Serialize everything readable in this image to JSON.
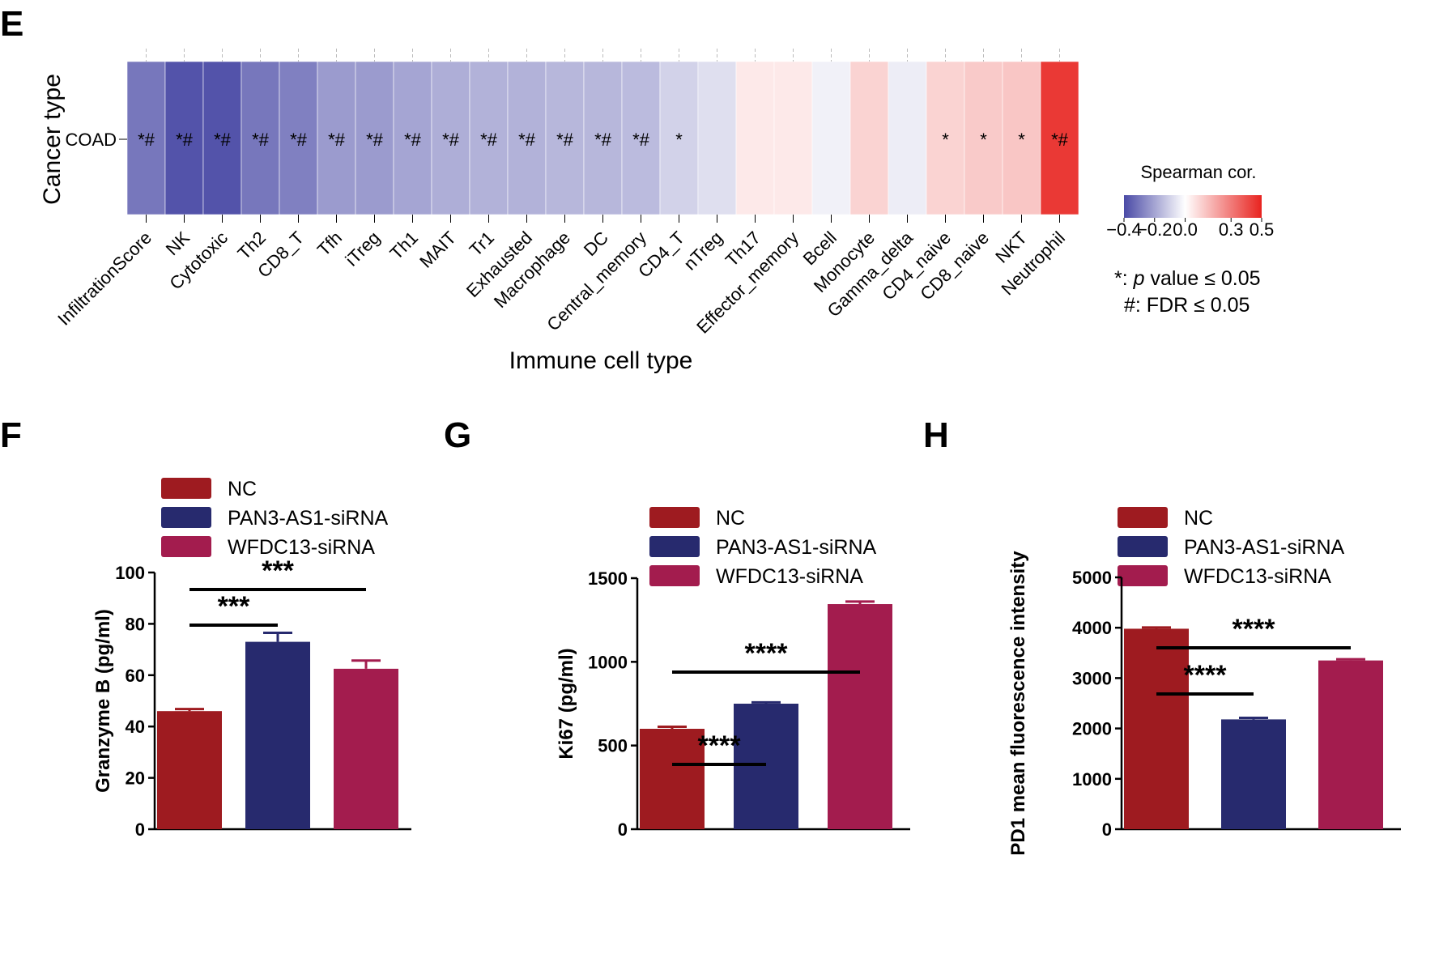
{
  "chart_data": [
    {
      "panel": "E",
      "type": "heatmap",
      "ylabel": "Cancer type",
      "xlabel": "Immune cell type",
      "rows": [
        "COAD"
      ],
      "columns": [
        "InfiltrationScore",
        "NK",
        "Cytotoxic",
        "Th2",
        "CD8_T",
        "Tfh",
        "iTreg",
        "Th1",
        "MAIT",
        "Tr1",
        "Exhausted",
        "Macrophage",
        "DC",
        "Central_memory",
        "CD4_T",
        "nTreg",
        "Th17",
        "Effector_memory",
        "Bcell",
        "Monocyte",
        "Gamma_delta",
        "CD4_naive",
        "CD8_naive",
        "NKT",
        "Neutrophil"
      ],
      "values": [
        -0.3,
        -0.38,
        -0.38,
        -0.3,
        -0.28,
        -0.22,
        -0.22,
        -0.2,
        -0.18,
        -0.17,
        -0.17,
        -0.16,
        -0.16,
        -0.15,
        -0.1,
        -0.07,
        0.05,
        0.05,
        -0.03,
        0.1,
        -0.04,
        0.1,
        0.12,
        0.13,
        0.45
      ],
      "marks": [
        "*#",
        "*#",
        "*#",
        "*#",
        "*#",
        "*#",
        "*#",
        "*#",
        "*#",
        "*#",
        "*#",
        "*#",
        "*#",
        "*#",
        "*",
        "",
        "",
        "",
        "",
        "",
        "",
        "*",
        "*",
        "*",
        "*#"
      ],
      "colorbar": {
        "title": "Spearman cor.",
        "min": -0.4,
        "max": 0.5,
        "ticks": [
          "−0.4",
          "−0.2",
          "0.0",
          "0.3",
          "0.5"
        ],
        "tick_values": [
          -0.4,
          -0.2,
          0.0,
          0.3,
          0.5
        ],
        "low_color": "#4a4aa6",
        "mid_color": "#ffffff",
        "high_color": "#e8231f"
      },
      "notes": {
        "p_prefix": "*: ",
        "p_italic": "p",
        "p_suffix": " value ≤ 0.05",
        "fdr": "#: FDR ≤ 0.05"
      }
    },
    {
      "panel": "F",
      "type": "bar",
      "categories": [
        "NC",
        "PAN3-AS1-siRNA",
        "WFDC13-siRNA"
      ],
      "values": [
        46,
        73,
        62.5
      ],
      "errors": [
        0.8,
        3.5,
        3.2
      ],
      "colors": [
        "#9e1b20",
        "#272a6e",
        "#a31c4e"
      ],
      "ylabel": "Granzyme B (pg/ml)",
      "ylim": [
        0,
        100
      ],
      "yticks": [
        "0",
        "20",
        "40",
        "60",
        "80",
        "100"
      ],
      "significance": [
        {
          "from": 0,
          "to": 1,
          "label": "***"
        },
        {
          "from": 0,
          "to": 2,
          "label": "***"
        }
      ]
    },
    {
      "panel": "G",
      "type": "bar",
      "categories": [
        "NC",
        "PAN3-AS1-siRNA",
        "WFDC13-siRNA"
      ],
      "values": [
        600,
        750,
        1345
      ],
      "errors": [
        12,
        8,
        15
      ],
      "colors": [
        "#9e1b20",
        "#272a6e",
        "#a31c4e"
      ],
      "ylabel": "Ki67 (pg/ml)",
      "ylim": [
        0,
        1500
      ],
      "yticks": [
        "0",
        "500",
        "1000",
        "1500"
      ],
      "significance": [
        {
          "from": 0,
          "to": 1,
          "label": "****"
        },
        {
          "from": 0,
          "to": 2,
          "label": "****"
        }
      ]
    },
    {
      "panel": "H",
      "type": "bar",
      "categories": [
        "NC",
        "PAN3-AS1-siRNA",
        "WFDC13-siRNA"
      ],
      "values": [
        3980,
        2180,
        3350
      ],
      "errors": [
        25,
        30,
        25
      ],
      "colors": [
        "#9e1b20",
        "#272a6e",
        "#a31c4e"
      ],
      "ylabel": "PD1 mean fluorescence intensity",
      "ylim": [
        0,
        5000
      ],
      "yticks": [
        "0",
        "1000",
        "2000",
        "3000",
        "4000",
        "5000"
      ],
      "significance": [
        {
          "from": 0,
          "to": 1,
          "label": "****"
        },
        {
          "from": 0,
          "to": 2,
          "label": "****"
        }
      ]
    }
  ]
}
